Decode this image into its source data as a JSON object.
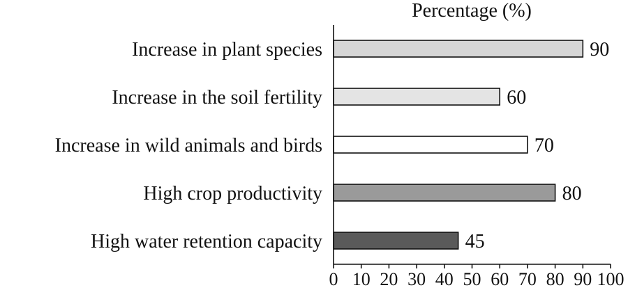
{
  "chart_data": {
    "type": "bar",
    "orientation": "horizontal",
    "title": "Percentage (%)",
    "xlabel": "Percentage (%)",
    "ylabel": "",
    "xlim": [
      0,
      100
    ],
    "ticks": [
      "0",
      "10",
      "20",
      "30",
      "40",
      "50",
      "60",
      "70",
      "80",
      "90",
      "100"
    ],
    "tick_values": [
      0,
      10,
      20,
      30,
      40,
      50,
      60,
      70,
      80,
      90,
      100
    ],
    "grid": false,
    "categories": [
      "Increase in plant species",
      "Increase in the soil fertility",
      "Increase in wild animals and birds",
      "High crop productivity",
      "High water retention capacity"
    ],
    "values": [
      90,
      60,
      70,
      80,
      45
    ],
    "value_labels": [
      "90",
      "60",
      "70",
      "80",
      "45"
    ],
    "colors": [
      "#d6d6d6",
      "#e4e4e4",
      "#ffffff",
      "#9a9a9a",
      "#5a5a5a"
    ]
  }
}
